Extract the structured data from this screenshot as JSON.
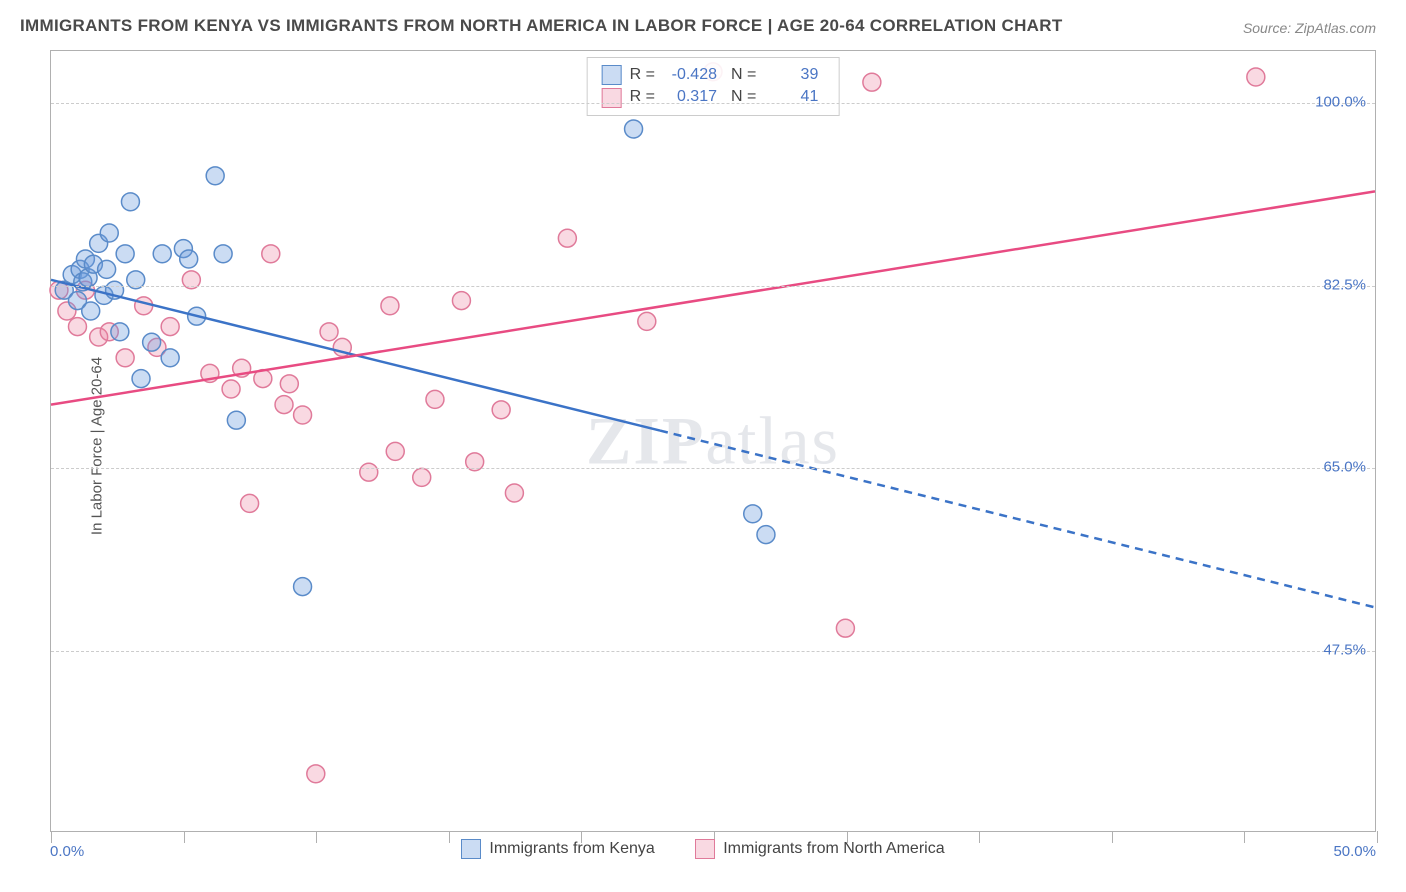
{
  "title": "IMMIGRANTS FROM KENYA VS IMMIGRANTS FROM NORTH AMERICA IN LABOR FORCE | AGE 20-64 CORRELATION CHART",
  "source_label": "Source: ZipAtlas.com",
  "watermark": {
    "zip": "ZIP",
    "atlas": "atlas"
  },
  "y_axis_label": "In Labor Force | Age 20-64",
  "x_axis": {
    "min": 0.0,
    "max": 50.0,
    "min_label": "0.0%",
    "max_label": "50.0%",
    "tick_positions": [
      0,
      5,
      10,
      15,
      20,
      25,
      30,
      35,
      40,
      45,
      50
    ]
  },
  "y_axis": {
    "min": 30.0,
    "max": 105.0,
    "ticks": [
      {
        "value": 47.5,
        "label": "47.5%"
      },
      {
        "value": 65.0,
        "label": "65.0%"
      },
      {
        "value": 82.5,
        "label": "82.5%"
      },
      {
        "value": 100.0,
        "label": "100.0%"
      }
    ]
  },
  "series": {
    "kenya": {
      "label": "Immigrants from Kenya",
      "fill_color": "rgba(106,156,220,0.35)",
      "stroke_color": "#5a8bc9",
      "marker_radius": 9,
      "R_label": "R =",
      "R": "-0.428",
      "N_label": "N =",
      "N": "39",
      "trend": {
        "start": {
          "x": 0.0,
          "y": 83.0
        },
        "solid_end": {
          "x": 23.0,
          "y": 68.5
        },
        "dash_end": {
          "x": 50.0,
          "y": 51.5
        },
        "color": "#3b73c7",
        "width": 2.5
      },
      "points": [
        {
          "x": 0.5,
          "y": 82.0
        },
        {
          "x": 0.8,
          "y": 83.5
        },
        {
          "x": 1.0,
          "y": 81.0
        },
        {
          "x": 1.1,
          "y": 84.0
        },
        {
          "x": 1.2,
          "y": 82.8
        },
        {
          "x": 1.3,
          "y": 85.0
        },
        {
          "x": 1.4,
          "y": 83.2
        },
        {
          "x": 1.5,
          "y": 80.0
        },
        {
          "x": 1.6,
          "y": 84.5
        },
        {
          "x": 1.8,
          "y": 86.5
        },
        {
          "x": 2.0,
          "y": 81.5
        },
        {
          "x": 2.1,
          "y": 84.0
        },
        {
          "x": 2.2,
          "y": 87.5
        },
        {
          "x": 2.4,
          "y": 82.0
        },
        {
          "x": 2.6,
          "y": 78.0
        },
        {
          "x": 2.8,
          "y": 85.5
        },
        {
          "x": 3.0,
          "y": 90.5
        },
        {
          "x": 3.2,
          "y": 83.0
        },
        {
          "x": 3.4,
          "y": 73.5
        },
        {
          "x": 3.8,
          "y": 77.0
        },
        {
          "x": 4.2,
          "y": 85.5
        },
        {
          "x": 4.5,
          "y": 75.5
        },
        {
          "x": 5.0,
          "y": 86.0
        },
        {
          "x": 5.2,
          "y": 85.0
        },
        {
          "x": 5.5,
          "y": 79.5
        },
        {
          "x": 6.2,
          "y": 93.0
        },
        {
          "x": 6.5,
          "y": 85.5
        },
        {
          "x": 7.0,
          "y": 69.5
        },
        {
          "x": 9.5,
          "y": 53.5
        },
        {
          "x": 22.0,
          "y": 97.5
        },
        {
          "x": 26.5,
          "y": 60.5
        },
        {
          "x": 27.0,
          "y": 58.5
        }
      ]
    },
    "na": {
      "label": "Immigrants from North America",
      "fill_color": "rgba(235,130,160,0.30)",
      "stroke_color": "#e07a9a",
      "marker_radius": 9,
      "R_label": "R =",
      "R": "0.317",
      "N_label": "N =",
      "N": "41",
      "trend": {
        "start": {
          "x": 0.0,
          "y": 71.0
        },
        "end": {
          "x": 50.0,
          "y": 91.5
        },
        "color": "#e84b82",
        "width": 2.5
      },
      "points": [
        {
          "x": 0.3,
          "y": 82.0
        },
        {
          "x": 0.6,
          "y": 80.0
        },
        {
          "x": 1.0,
          "y": 78.5
        },
        {
          "x": 1.3,
          "y": 82.0
        },
        {
          "x": 1.8,
          "y": 77.5
        },
        {
          "x": 2.2,
          "y": 78.0
        },
        {
          "x": 2.8,
          "y": 75.5
        },
        {
          "x": 3.5,
          "y": 80.5
        },
        {
          "x": 4.0,
          "y": 76.5
        },
        {
          "x": 4.5,
          "y": 78.5
        },
        {
          "x": 5.3,
          "y": 83.0
        },
        {
          "x": 6.0,
          "y": 74.0
        },
        {
          "x": 6.8,
          "y": 72.5
        },
        {
          "x": 7.2,
          "y": 74.5
        },
        {
          "x": 7.5,
          "y": 61.5
        },
        {
          "x": 8.0,
          "y": 73.5
        },
        {
          "x": 8.3,
          "y": 85.5
        },
        {
          "x": 8.8,
          "y": 71.0
        },
        {
          "x": 9.0,
          "y": 73.0
        },
        {
          "x": 9.5,
          "y": 70.0
        },
        {
          "x": 10.0,
          "y": 35.5
        },
        {
          "x": 10.5,
          "y": 78.0
        },
        {
          "x": 11.0,
          "y": 76.5
        },
        {
          "x": 12.0,
          "y": 64.5
        },
        {
          "x": 12.8,
          "y": 80.5
        },
        {
          "x": 13.0,
          "y": 66.5
        },
        {
          "x": 14.0,
          "y": 64.0
        },
        {
          "x": 14.5,
          "y": 71.5
        },
        {
          "x": 15.5,
          "y": 81.0
        },
        {
          "x": 16.0,
          "y": 65.5
        },
        {
          "x": 17.0,
          "y": 70.5
        },
        {
          "x": 17.5,
          "y": 62.5
        },
        {
          "x": 19.5,
          "y": 87.0
        },
        {
          "x": 22.5,
          "y": 79.0
        },
        {
          "x": 25.0,
          "y": 103.0
        },
        {
          "x": 31.0,
          "y": 102.0
        },
        {
          "x": 30.0,
          "y": 49.5
        },
        {
          "x": 45.5,
          "y": 102.5
        }
      ]
    }
  },
  "colors": {
    "title": "#4a4a4a",
    "axis_label_color": "#4a75c4",
    "grid": "#cccccc",
    "border": "#b0b0b0"
  }
}
